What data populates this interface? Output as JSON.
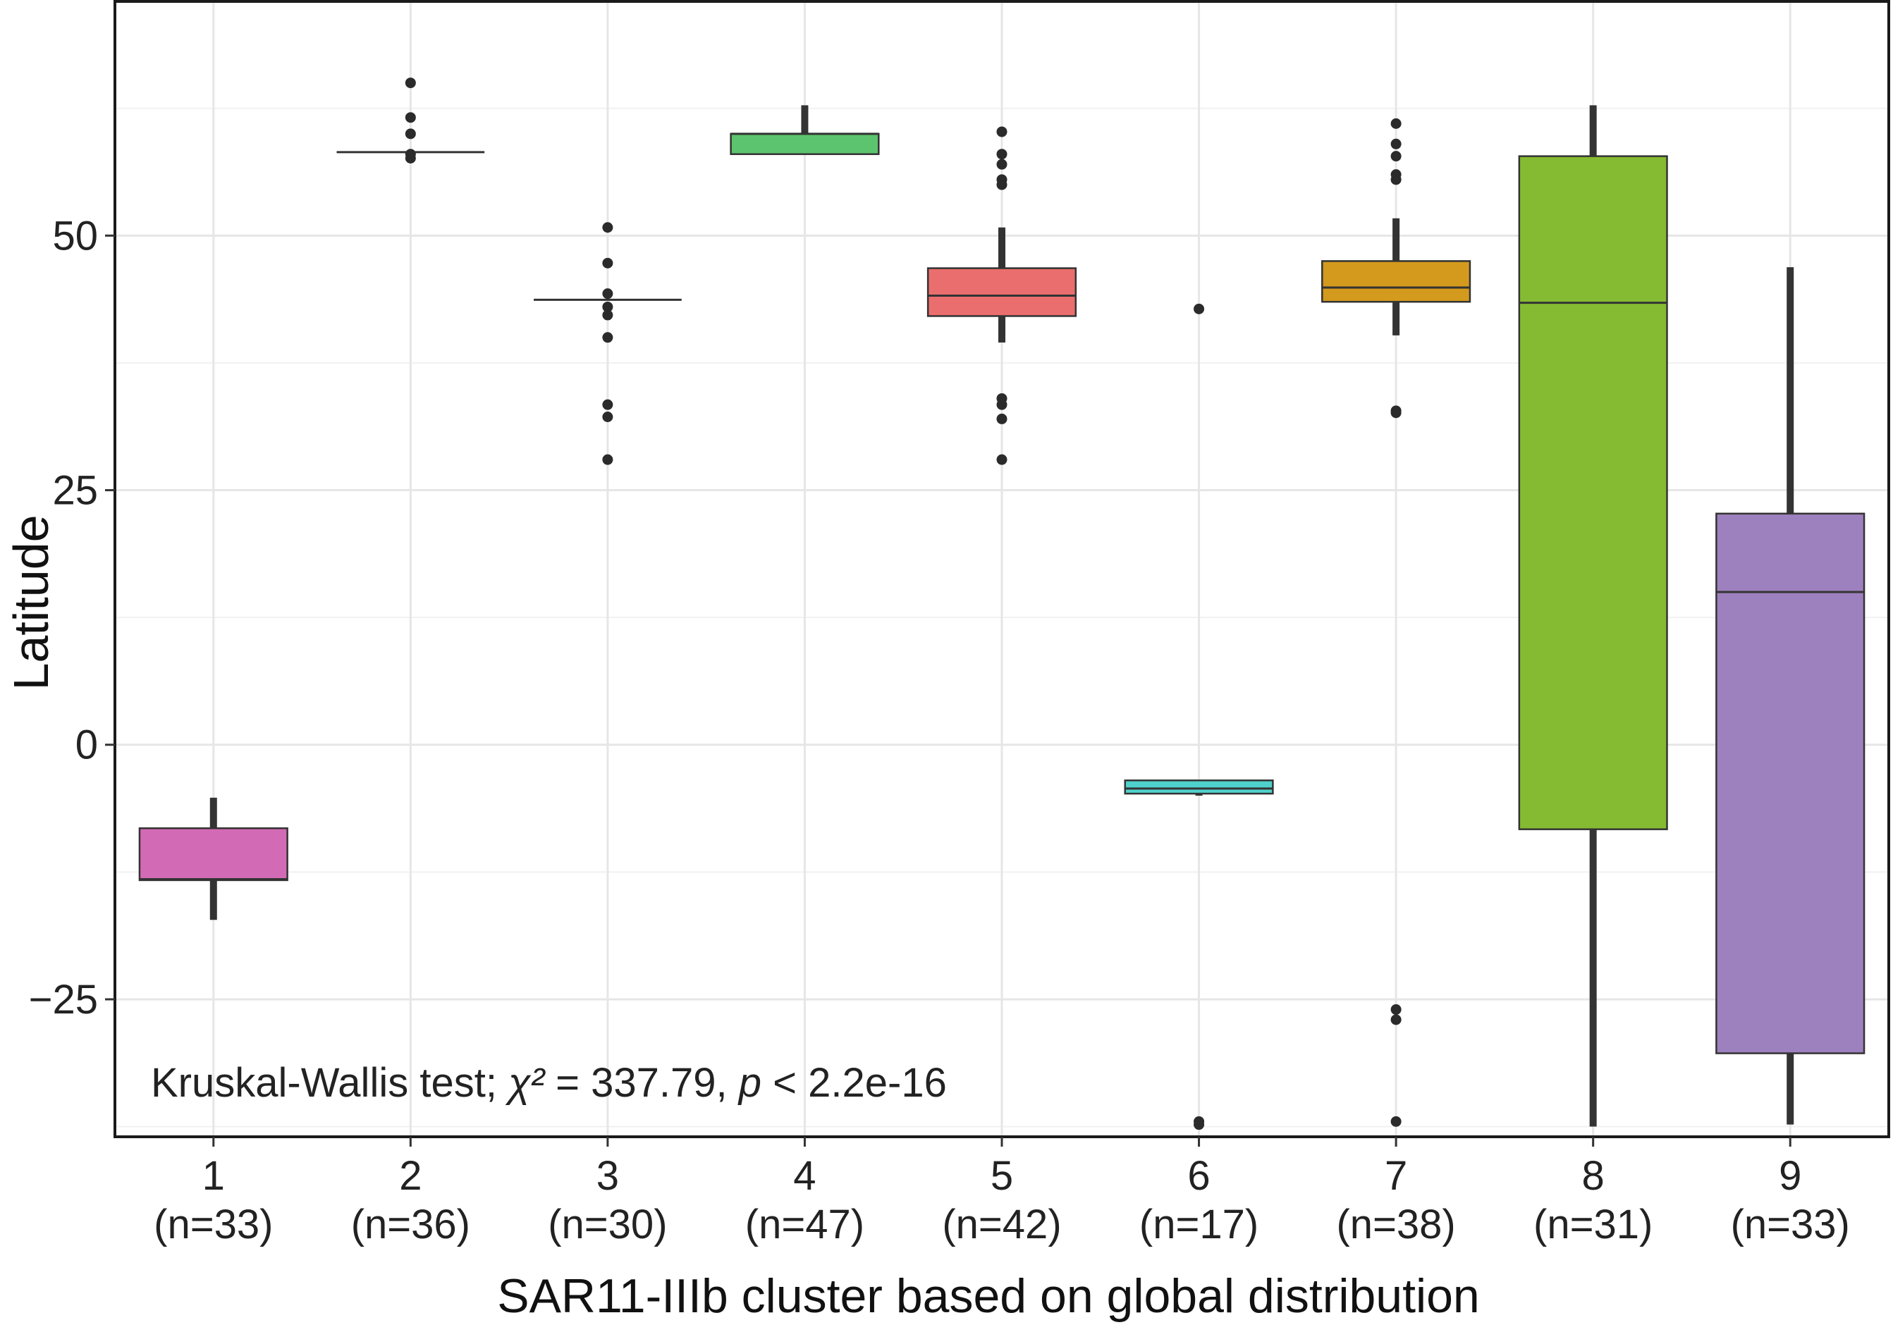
{
  "chart_data": {
    "type": "boxplot",
    "title": "",
    "xlabel": "SAR11-IIIb cluster based on global distribution",
    "ylabel": "Latitude",
    "ylim": [
      -38.5,
      73
    ],
    "yticks": [
      -25,
      0,
      25,
      50
    ],
    "ytick_labels": [
      "−25",
      "0",
      "25",
      "50"
    ],
    "grid": true,
    "annotation": {
      "prefix": "Kruskal-Wallis test; ",
      "chi": "χ²",
      "chi_value": " = 337.79, ",
      "p": "p",
      "p_value": " < 2.2e-16"
    },
    "groups": [
      {
        "label": "1",
        "n_label": "(n=33)",
        "color": "#D36AB5",
        "q1": -13.3,
        "median": -13.2,
        "q3": -8.2,
        "whisker_low": -17.2,
        "whisker_high": -5.2,
        "outliers": []
      },
      {
        "label": "2",
        "n_label": "(n=36)",
        "color": "#F8766D",
        "q1": 58.2,
        "median": 58.2,
        "q3": 58.2,
        "whisker_low": 58.2,
        "whisker_high": 58.2,
        "outliers": [
          57.6,
          58.0,
          60.0,
          61.6,
          65.0
        ]
      },
      {
        "label": "3",
        "n_label": "(n=30)",
        "color": "#7CAE00",
        "q1": 43.7,
        "median": 43.7,
        "q3": 43.7,
        "whisker_low": 43.7,
        "whisker_high": 43.7,
        "outliers": [
          28.0,
          32.2,
          33.4,
          40.0,
          42.2,
          43.0,
          44.3,
          47.3,
          50.8
        ]
      },
      {
        "label": "4",
        "n_label": "(n=47)",
        "color": "#5CC46E",
        "q1": 58.0,
        "median": 60.0,
        "q3": 60.0,
        "whisker_low": 58.0,
        "whisker_high": 62.8,
        "outliers": []
      },
      {
        "label": "5",
        "n_label": "(n=42)",
        "color": "#EB6E6E",
        "q1": 42.1,
        "median": 44.1,
        "q3": 46.8,
        "whisker_low": 39.5,
        "whisker_high": 50.8,
        "outliers": [
          28.0,
          32.0,
          33.4,
          34.0,
          55.0,
          55.5,
          57.0,
          58.0,
          60.2
        ]
      },
      {
        "label": "6",
        "n_label": "(n=17)",
        "color": "#4FD1CC",
        "q1": -4.8,
        "median": -4.3,
        "q3": -3.5,
        "whisker_low": -5.0,
        "whisker_high": -3.5,
        "outliers": [
          -37.0,
          -37.3,
          42.8
        ]
      },
      {
        "label": "7",
        "n_label": "(n=38)",
        "color": "#D39A1D",
        "q1": 43.5,
        "median": 44.9,
        "q3": 47.5,
        "whisker_low": 40.2,
        "whisker_high": 51.7,
        "outliers": [
          -37.0,
          -27.0,
          -26.0,
          32.6,
          32.8,
          55.5,
          56.0,
          57.8,
          59.0,
          61.0
        ]
      },
      {
        "label": "8",
        "n_label": "(n=31)",
        "color": "#85BB32",
        "q1": -8.3,
        "median": 43.4,
        "q3": 57.8,
        "whisker_low": -37.5,
        "whisker_high": 62.8,
        "outliers": []
      },
      {
        "label": "9",
        "n_label": "(n=33)",
        "color": "#9D80BE",
        "q1": -30.3,
        "median": 15.0,
        "q3": 22.7,
        "whisker_low": -37.3,
        "whisker_high": 46.9,
        "outliers": []
      }
    ]
  }
}
